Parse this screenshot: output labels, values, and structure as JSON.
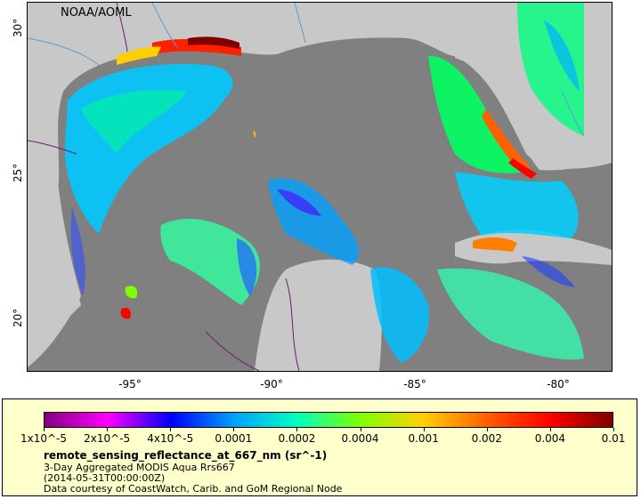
{
  "map": {
    "credit": "NOAA/AOML",
    "lat_ticks": [
      "20°",
      "25°",
      "30°"
    ],
    "lon_ticks": [
      "-95°",
      "-90°",
      "-85°",
      "-80°"
    ],
    "colors": {
      "land": "#c8c8c8",
      "no_data": "#808080",
      "border": "#6a1b6a",
      "river": "#5b9bd5"
    }
  },
  "legend": {
    "variable": "remote_sensing_reflectance_at_667_nm (sr^-1)",
    "description": "3-Day Aggregated MODIS Aqua Rrs667",
    "time": "(2014-05-31T00:00:00Z)",
    "source": "Data courtesy of CoastWatch, Carib. and GoM Regional Node",
    "scale_labels": [
      "1x10^-5",
      "2x10^-5",
      "4x10^-5",
      "0.0001",
      "0.0002",
      "0.0004",
      "0.001",
      "0.002",
      "0.004",
      "0.01"
    ],
    "scale_type": "log",
    "scale_range": [
      1e-05,
      0.01
    ],
    "colormap": [
      "#800080",
      "#ff00ff",
      "#0000ff",
      "#00a0ff",
      "#00ffc0",
      "#80ff00",
      "#ffd000",
      "#ff6000",
      "#ff0000",
      "#800000"
    ]
  }
}
